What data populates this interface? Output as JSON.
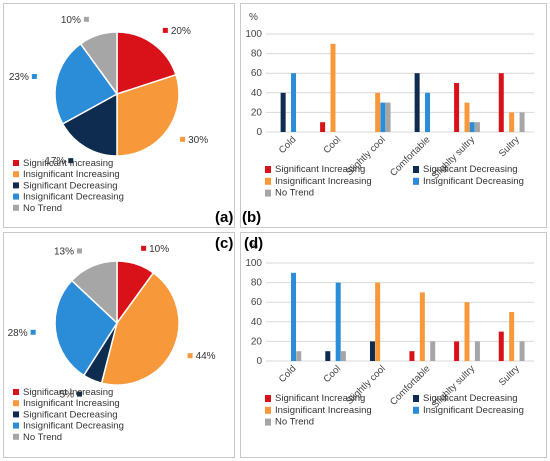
{
  "panel_labels": [
    "(a)",
    "(b)",
    "(c)",
    "(d)"
  ],
  "colors": {
    "significant_increasing": "#d9121a",
    "insignificant_increasing": "#f7993b",
    "significant_decreasing": "#0d2c4f",
    "insignificant_decreasing": "#2b8cd8",
    "no_trend": "#a6a6a6"
  },
  "chart_data": [
    {
      "panel": "(a)",
      "type": "pie",
      "labels": [
        "Significant Increasing",
        "Insignificant Increasing",
        "Significant Decreasing",
        "Insignificant Decreasing",
        "No Trend"
      ],
      "values": [
        20,
        30,
        17,
        23,
        10
      ],
      "value_labels": [
        "20%",
        "30%",
        "17%",
        "23%",
        "10%"
      ]
    },
    {
      "panel": "(b)",
      "type": "bar",
      "ylabel": "%",
      "ylim": [
        0,
        100
      ],
      "yticks": [
        "0",
        "20",
        "40",
        "60",
        "80",
        "100"
      ],
      "categories": [
        "Cold",
        "Cool",
        "Slightly cool",
        "Comfortable",
        "Slighlty sultry",
        "Sultry"
      ],
      "series": [
        {
          "name": "Significant Increasing",
          "values": [
            0,
            10,
            0,
            0,
            50,
            60
          ]
        },
        {
          "name": "Significant Decreasing",
          "values": [
            40,
            0,
            0,
            60,
            0,
            0
          ]
        },
        {
          "name": "Insignificant Increasing",
          "values": [
            0,
            90,
            40,
            0,
            30,
            20
          ]
        },
        {
          "name": "Insignificant Decreasing",
          "values": [
            60,
            0,
            30,
            40,
            10,
            0
          ]
        },
        {
          "name": "No Trend",
          "values": [
            0,
            0,
            30,
            0,
            10,
            20
          ]
        }
      ],
      "legend": "bottom"
    },
    {
      "panel": "(c)",
      "type": "pie",
      "labels": [
        "Significant Increasing",
        "Insignificant Increasing",
        "Significant Decreasing",
        "Insignificant Decreasing",
        "No Trend"
      ],
      "values": [
        10,
        44,
        5,
        28,
        13
      ],
      "value_labels": [
        "10%",
        "44%",
        "5%",
        "28%",
        "13%"
      ]
    },
    {
      "panel": "(d)",
      "type": "bar",
      "ylabel": "%",
      "ylim": [
        0,
        100
      ],
      "yticks": [
        "0",
        "20",
        "40",
        "60",
        "80",
        "100"
      ],
      "categories": [
        "Cold",
        "Cool",
        "Slightly cool",
        "Comfortable",
        "Slighlty sultry",
        "Sultry"
      ],
      "series": [
        {
          "name": "Significant Increasing",
          "values": [
            0,
            0,
            0,
            10,
            20,
            30
          ]
        },
        {
          "name": "Significant Decreasing",
          "values": [
            0,
            10,
            20,
            0,
            0,
            0
          ]
        },
        {
          "name": "Insignificant Increasing",
          "values": [
            0,
            0,
            80,
            70,
            60,
            50
          ]
        },
        {
          "name": "Insignificant Decreasing",
          "values": [
            90,
            80,
            0,
            0,
            0,
            0
          ]
        },
        {
          "name": "No Trend",
          "values": [
            10,
            10,
            0,
            20,
            20,
            20
          ]
        }
      ],
      "legend": "bottom"
    }
  ]
}
